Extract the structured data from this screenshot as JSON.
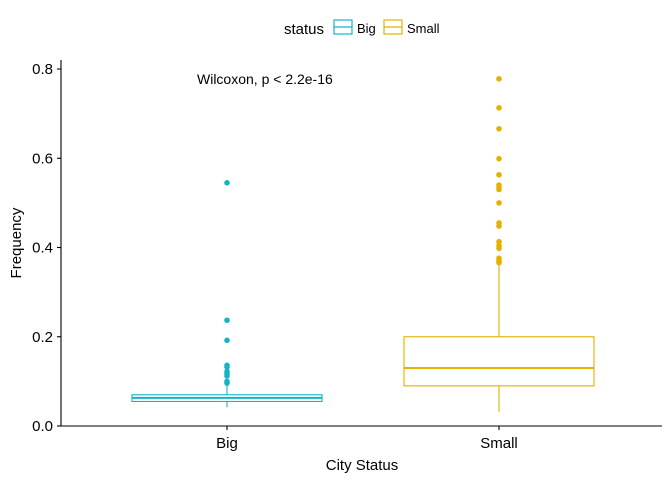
{
  "chart_data": {
    "type": "box",
    "xlabel": "City Status",
    "ylabel": "Frequency",
    "ylim": [
      0,
      0.8
    ],
    "yticks": [
      "0.0",
      "0.2",
      "0.4",
      "0.6",
      "0.8"
    ],
    "categories": [
      "Big",
      "Small"
    ],
    "annotation": "Wilcoxon, p < 2.2e-16",
    "grid": false,
    "legend": {
      "title": "status",
      "placement": "top",
      "entries": [
        "Big",
        "Small"
      ]
    },
    "colors": {
      "Big": "#16B3C7",
      "Small": "#E3B100"
    },
    "series": [
      {
        "name": "Big",
        "q1": 0.055,
        "median": 0.063,
        "q3": 0.07,
        "whisker_low": 0.042,
        "whisker_high": 0.093,
        "outliers": [
          0.545,
          0.237,
          0.192,
          0.136,
          0.132,
          0.122,
          0.117,
          0.112,
          0.1,
          0.096
        ]
      },
      {
        "name": "Small",
        "q1": 0.09,
        "median": 0.13,
        "q3": 0.2,
        "whisker_low": 0.032,
        "whisker_high": 0.365,
        "outliers": [
          0.778,
          0.713,
          0.666,
          0.599,
          0.563,
          0.54,
          0.535,
          0.53,
          0.5,
          0.455,
          0.448,
          0.413,
          0.404,
          0.398,
          0.376,
          0.37,
          0.366
        ]
      }
    ]
  }
}
